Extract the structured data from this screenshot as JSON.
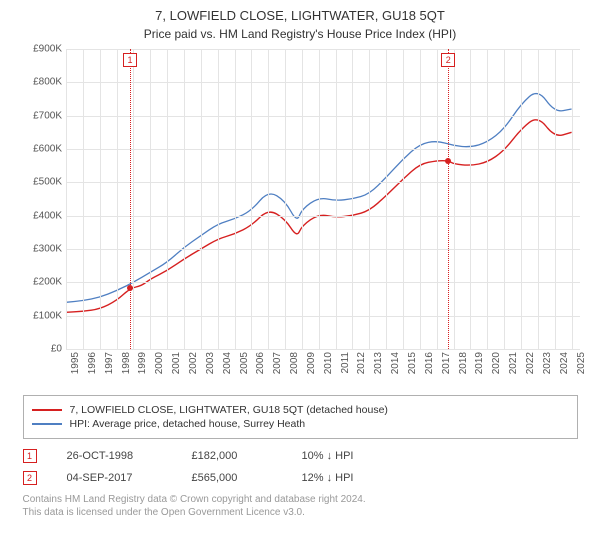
{
  "title": "7, LOWFIELD CLOSE, LIGHTWATER, GU18 5QT",
  "subtitle": "Price paid vs. HM Land Registry's House Price Index (HPI)",
  "chart": {
    "type": "line",
    "ylim": [
      0,
      900000
    ],
    "xlim": [
      1995,
      2025.5
    ],
    "yticks": [
      0,
      100000,
      200000,
      300000,
      400000,
      500000,
      600000,
      700000,
      800000,
      900000
    ],
    "ytick_labels": [
      "£0",
      "£100K",
      "£200K",
      "£300K",
      "£400K",
      "£500K",
      "£600K",
      "£700K",
      "£800K",
      "£900K"
    ],
    "xticks": [
      1995,
      1996,
      1997,
      1998,
      1999,
      2000,
      2001,
      2002,
      2003,
      2004,
      2005,
      2006,
      2007,
      2008,
      2009,
      2010,
      2011,
      2012,
      2013,
      2014,
      2015,
      2016,
      2017,
      2018,
      2019,
      2020,
      2021,
      2022,
      2023,
      2024,
      2025
    ],
    "grid_color": "#e4e4e4",
    "background_color": "#ffffff",
    "series": {
      "red": {
        "color": "#d62020",
        "width": 1.4,
        "values": [
          [
            1995,
            110000
          ],
          [
            1996,
            113000
          ],
          [
            1997,
            120000
          ],
          [
            1998,
            145000
          ],
          [
            1998.8,
            182000
          ],
          [
            1999.5,
            190000
          ],
          [
            2000,
            210000
          ],
          [
            2001,
            235000
          ],
          [
            2002,
            270000
          ],
          [
            2003,
            300000
          ],
          [
            2004,
            330000
          ],
          [
            2005,
            345000
          ],
          [
            2006,
            370000
          ],
          [
            2007,
            420000
          ],
          [
            2008,
            390000
          ],
          [
            2008.7,
            335000
          ],
          [
            2009,
            370000
          ],
          [
            2010,
            405000
          ],
          [
            2011,
            395000
          ],
          [
            2012,
            400000
          ],
          [
            2013,
            415000
          ],
          [
            2014,
            460000
          ],
          [
            2015,
            510000
          ],
          [
            2016,
            555000
          ],
          [
            2017,
            565000
          ],
          [
            2017.7,
            565000
          ],
          [
            2018,
            555000
          ],
          [
            2019,
            550000
          ],
          [
            2020,
            560000
          ],
          [
            2021,
            595000
          ],
          [
            2022,
            660000
          ],
          [
            2023,
            700000
          ],
          [
            2024,
            635000
          ],
          [
            2025,
            650000
          ]
        ]
      },
      "blue": {
        "color": "#4f7fc2",
        "width": 1.3,
        "values": [
          [
            1995,
            140000
          ],
          [
            1996,
            145000
          ],
          [
            1997,
            155000
          ],
          [
            1998,
            175000
          ],
          [
            1999,
            200000
          ],
          [
            2000,
            230000
          ],
          [
            2001,
            260000
          ],
          [
            2002,
            305000
          ],
          [
            2003,
            340000
          ],
          [
            2004,
            375000
          ],
          [
            2005,
            390000
          ],
          [
            2006,
            415000
          ],
          [
            2007,
            475000
          ],
          [
            2008,
            445000
          ],
          [
            2008.7,
            380000
          ],
          [
            2009,
            420000
          ],
          [
            2010,
            455000
          ],
          [
            2011,
            445000
          ],
          [
            2012,
            450000
          ],
          [
            2013,
            465000
          ],
          [
            2014,
            515000
          ],
          [
            2015,
            570000
          ],
          [
            2016,
            615000
          ],
          [
            2017,
            625000
          ],
          [
            2018,
            610000
          ],
          [
            2019,
            605000
          ],
          [
            2020,
            620000
          ],
          [
            2021,
            660000
          ],
          [
            2022,
            735000
          ],
          [
            2023,
            780000
          ],
          [
            2024,
            710000
          ],
          [
            2025,
            720000
          ]
        ]
      }
    },
    "markers": [
      {
        "id": "1",
        "x": 1998.8,
        "y": 182000,
        "color": "#d62020"
      },
      {
        "id": "2",
        "x": 2017.68,
        "y": 565000,
        "color": "#d62020"
      }
    ]
  },
  "legend": {
    "items": [
      {
        "color": "#d62020",
        "label": "7, LOWFIELD CLOSE, LIGHTWATER, GU18 5QT (detached house)"
      },
      {
        "color": "#4f7fc2",
        "label": "HPI: Average price, detached house, Surrey Heath"
      }
    ]
  },
  "events": [
    {
      "id": "1",
      "color": "#d62020",
      "date": "26-OCT-1998",
      "price": "£182,000",
      "delta": "10% ↓ HPI"
    },
    {
      "id": "2",
      "color": "#d62020",
      "date": "04-SEP-2017",
      "price": "£565,000",
      "delta": "12% ↓ HPI"
    }
  ],
  "footnote1": "Contains HM Land Registry data © Crown copyright and database right 2024.",
  "footnote2": "This data is licensed under the Open Government Licence v3.0."
}
